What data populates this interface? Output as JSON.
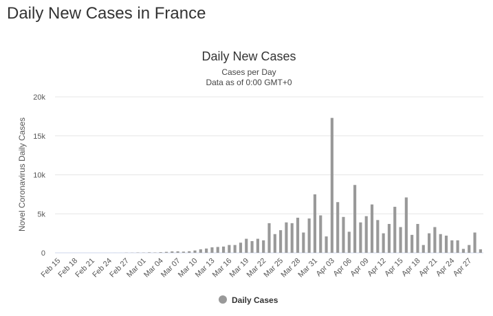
{
  "page": {
    "title": "Daily New Cases in France"
  },
  "chart_data": {
    "type": "bar",
    "title": "Daily New Cases",
    "subtitle_lines": [
      "Cases per Day",
      "Data as of 0:00 GMT+0"
    ],
    "ylabel": "Novel Coronavirus Daily Cases",
    "xlabel": "",
    "ylim": [
      0,
      20000
    ],
    "yticks": [
      0,
      5000,
      10000,
      15000,
      20000
    ],
    "ytick_labels": [
      "0",
      "5k",
      "10k",
      "15k",
      "20k"
    ],
    "categories": [
      "Feb 15",
      "Feb 16",
      "Feb 17",
      "Feb 18",
      "Feb 19",
      "Feb 20",
      "Feb 21",
      "Feb 22",
      "Feb 23",
      "Feb 24",
      "Feb 25",
      "Feb 26",
      "Feb 27",
      "Feb 28",
      "Feb 29",
      "Mar 01",
      "Mar 02",
      "Mar 03",
      "Mar 04",
      "Mar 05",
      "Mar 06",
      "Mar 07",
      "Mar 08",
      "Mar 09",
      "Mar 10",
      "Mar 11",
      "Mar 12",
      "Mar 13",
      "Mar 14",
      "Mar 15",
      "Mar 16",
      "Mar 17",
      "Mar 18",
      "Mar 19",
      "Mar 20",
      "Mar 21",
      "Mar 22",
      "Mar 23",
      "Mar 24",
      "Mar 25",
      "Mar 26",
      "Mar 27",
      "Mar 28",
      "Mar 29",
      "Mar 30",
      "Mar 31",
      "Apr 01",
      "Apr 02",
      "Apr 03",
      "Apr 04",
      "Apr 05",
      "Apr 06",
      "Apr 07",
      "Apr 08",
      "Apr 09",
      "Apr 10",
      "Apr 11",
      "Apr 12",
      "Apr 13",
      "Apr 14",
      "Apr 15",
      "Apr 16",
      "Apr 17",
      "Apr 18",
      "Apr 19",
      "Apr 20",
      "Apr 21",
      "Apr 22",
      "Apr 23",
      "Apr 24",
      "Apr 25",
      "Apr 26",
      "Apr 27",
      "Apr 28",
      "Apr 29"
    ],
    "xtick_labels": [
      "Feb 15",
      "Feb 18",
      "Feb 21",
      "Feb 24",
      "Feb 27",
      "Mar 01",
      "Mar 04",
      "Mar 07",
      "Mar 10",
      "Mar 13",
      "Mar 16",
      "Mar 19",
      "Mar 22",
      "Mar 25",
      "Mar 28",
      "Mar 31",
      "Apr 03",
      "Apr 06",
      "Apr 09",
      "Apr 12",
      "Apr 15",
      "Apr 18",
      "Apr 21",
      "Apr 24",
      "Apr 27"
    ],
    "series": [
      {
        "name": "Daily Cases",
        "color": "#999999",
        "values": [
          0,
          0,
          0,
          0,
          0,
          0,
          0,
          0,
          0,
          0,
          2,
          2,
          20,
          20,
          40,
          30,
          60,
          40,
          80,
          120,
          180,
          190,
          150,
          200,
          300,
          450,
          550,
          700,
          750,
          800,
          1000,
          1000,
          1300,
          1800,
          1500,
          1800,
          1600,
          3800,
          2400,
          2900,
          3900,
          3800,
          4500,
          2600,
          4400,
          7500,
          4800,
          2100,
          17300,
          6500,
          4600,
          2700,
          8700,
          3900,
          4700,
          6200,
          4200,
          2500,
          3700,
          5900,
          3300,
          7100,
          2300,
          3700,
          1000,
          2500,
          3300,
          2400,
          2200,
          1600,
          1600,
          500,
          1000,
          2600,
          450
        ]
      }
    ],
    "legend": {
      "position": "bottom-center"
    },
    "grid": true
  }
}
